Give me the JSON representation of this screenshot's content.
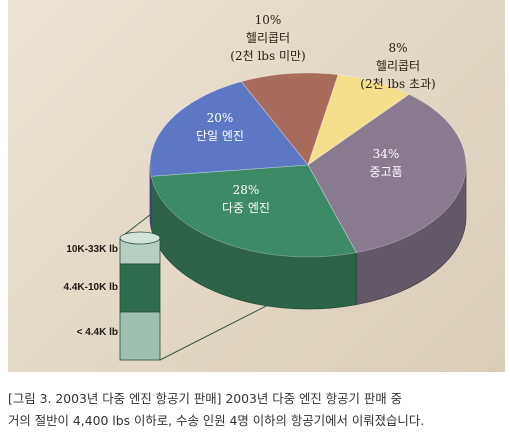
{
  "chart_data": {
    "type": "pie",
    "title": "",
    "slices": [
      {
        "label": "헬리콥터\n(2천 lbs 미만)",
        "pct_text": "10%",
        "value": 10,
        "color": "#a86a5a"
      },
      {
        "label": "헬리콥터\n(2천 lbs 초과)",
        "pct_text": "8%",
        "value": 8,
        "color": "#f4e08c"
      },
      {
        "label": "중고품",
        "pct_text": "34%",
        "value": 34,
        "color": "#8a7a90"
      },
      {
        "label": "다중 엔진",
        "pct_text": "28%",
        "value": 28,
        "color": "#3d8a66"
      },
      {
        "label": "단일 엔진",
        "pct_text": "20%",
        "value": 20,
        "color": "#5c78c4"
      }
    ],
    "breakdown": {
      "of": "다중 엔진",
      "segments": [
        {
          "label": "10K-33K lb",
          "color": "#b7cfc2"
        },
        {
          "label": "4.4K-10K lb",
          "color": "#2f6d50"
        },
        {
          "label": "< 4.4K lb",
          "color": "#9fc0ae"
        }
      ]
    }
  },
  "caption": {
    "line1": "[그림 3. 2003년 다중 엔진 항공기 판매] 2003년 다중 엔진 항공기 판매 중",
    "line2": "거의 절반이 4,400 lbs 이하로, 수송 인원 4명 이하의 항공기에서 이뤄졌습니다."
  }
}
